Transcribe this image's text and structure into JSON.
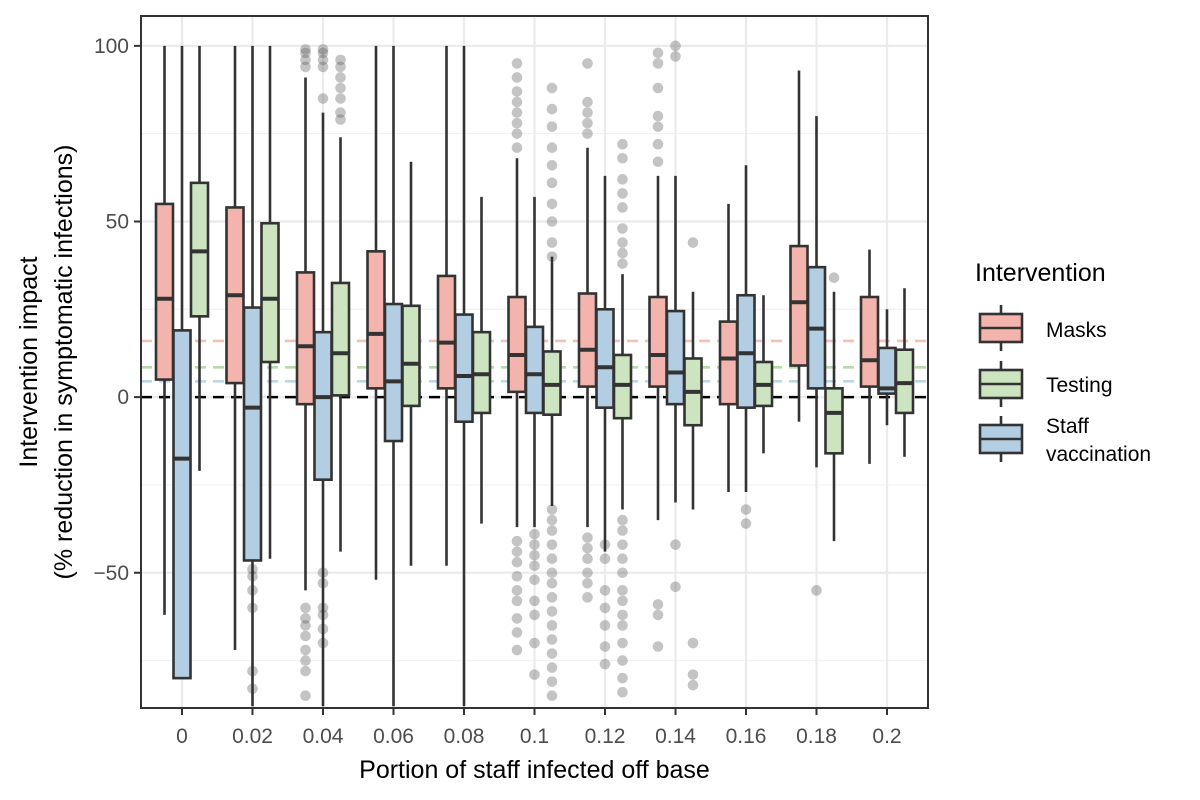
{
  "chart_data": {
    "type": "box",
    "xlabel": "Portion of staff infected off base",
    "ylabel_line1": "Intervention impact",
    "ylabel_line2": "(% reduction in symptomatic infections)",
    "categories": [
      "0",
      "0.02",
      "0.04",
      "0.06",
      "0.08",
      "0.1",
      "0.12",
      "0.14",
      "0.16",
      "0.18",
      "0.2"
    ],
    "y_ticks": [
      -50,
      0,
      50,
      100
    ],
    "y_tick_labels": [
      "−50",
      "0",
      "50",
      "100"
    ],
    "ylim": [
      -88.5,
      108.5
    ],
    "grid": true,
    "legend": {
      "title": "Intervention",
      "position": "right",
      "items": [
        {
          "label": "Masks",
          "color": "#F4B4AE"
        },
        {
          "label": "Testing",
          "color": "#CCE5C0"
        },
        {
          "label": "Staff",
          "label2": "vaccination",
          "color": "#B3CDE3"
        }
      ]
    },
    "reference_lines": [
      {
        "y": 16,
        "color": "#F4B4AE"
      },
      {
        "y": 8.5,
        "color": "#A9D39A"
      },
      {
        "y": 4.5,
        "color": "#B3CDE3"
      },
      {
        "y": 0,
        "color": "#000000"
      }
    ],
    "series": [
      {
        "name": "Masks",
        "color": "#F4B4AE",
        "boxes": [
          {
            "whisker_low": -62,
            "q1": 5,
            "median": 28,
            "q3": 55,
            "whisker_high": 100
          },
          {
            "whisker_low": -72,
            "q1": 4,
            "median": 29,
            "q3": 54,
            "whisker_high": 100
          },
          {
            "whisker_low": -55,
            "q1": -2,
            "median": 14.5,
            "q3": 35.5,
            "whisker_high": 91
          },
          {
            "whisker_low": -52,
            "q1": 2.5,
            "median": 18,
            "q3": 41.5,
            "whisker_high": 100
          },
          {
            "whisker_low": -48,
            "q1": 2.5,
            "median": 15.5,
            "q3": 34.5,
            "whisker_high": 100
          },
          {
            "whisker_low": -37,
            "q1": 1.5,
            "median": 12,
            "q3": 28.5,
            "whisker_high": 68
          },
          {
            "whisker_low": -37,
            "q1": 3,
            "median": 13.5,
            "q3": 29.5,
            "whisker_high": 71
          },
          {
            "whisker_low": -35,
            "q1": 3,
            "median": 12,
            "q3": 28.5,
            "whisker_high": 63
          },
          {
            "whisker_low": -27,
            "q1": -2,
            "median": 11,
            "q3": 21.5,
            "whisker_high": 55
          },
          {
            "whisker_low": -7,
            "q1": 9,
            "median": 27,
            "q3": 43,
            "whisker_high": 93
          },
          {
            "whisker_low": -19,
            "q1": 3,
            "median": 10.5,
            "q3": 28.5,
            "whisker_high": 42
          }
        ]
      },
      {
        "name": "Staff vaccination",
        "color": "#B3CDE3",
        "boxes": [
          {
            "whisker_low": -80,
            "q1": -80,
            "median": -17.5,
            "q3": 19,
            "whisker_high": 100
          },
          {
            "whisker_low": -88,
            "q1": -46.5,
            "median": -3,
            "q3": 25.5,
            "whisker_high": 100
          },
          {
            "whisker_low": -88,
            "q1": -23.5,
            "median": 0,
            "q3": 18.5,
            "whisker_high": 81
          },
          {
            "whisker_low": -88,
            "q1": -12.5,
            "median": 4.5,
            "q3": 26.5,
            "whisker_high": 100
          },
          {
            "whisker_low": -88,
            "q1": -7,
            "median": 6,
            "q3": 23.5,
            "whisker_high": 100
          },
          {
            "whisker_low": -37,
            "q1": -4.5,
            "median": 6.5,
            "q3": 20,
            "whisker_high": 57
          },
          {
            "whisker_low": -44,
            "q1": -3,
            "median": 8.5,
            "q3": 25,
            "whisker_high": 63
          },
          {
            "whisker_low": -30,
            "q1": -2,
            "median": 7,
            "q3": 24.5,
            "whisker_high": 63
          },
          {
            "whisker_low": -27,
            "q1": -3,
            "median": 12.5,
            "q3": 29,
            "whisker_high": 66
          },
          {
            "whisker_low": -20,
            "q1": 2.5,
            "median": 19.5,
            "q3": 37,
            "whisker_high": 80
          },
          {
            "whisker_low": -8,
            "q1": 1,
            "median": 2.5,
            "q3": 14,
            "whisker_high": 25
          }
        ]
      },
      {
        "name": "Testing",
        "color": "#CCE5C0",
        "boxes": [
          {
            "whisker_low": -21,
            "q1": 23,
            "median": 41.5,
            "q3": 61,
            "whisker_high": 100
          },
          {
            "whisker_low": -46,
            "q1": 10,
            "median": 28,
            "q3": 49.5,
            "whisker_high": 100
          },
          {
            "whisker_low": -44,
            "q1": 0.5,
            "median": 12.5,
            "q3": 32.5,
            "whisker_high": 74
          },
          {
            "whisker_low": -48,
            "q1": -2.5,
            "median": 9.5,
            "q3": 26,
            "whisker_high": 67
          },
          {
            "whisker_low": -36,
            "q1": -4.5,
            "median": 6.5,
            "q3": 18.5,
            "whisker_high": 57
          },
          {
            "whisker_low": -31,
            "q1": -5,
            "median": 3.5,
            "q3": 13,
            "whisker_high": 40
          },
          {
            "whisker_low": -32,
            "q1": -6,
            "median": 3.5,
            "q3": 12,
            "whisker_high": 35
          },
          {
            "whisker_low": -32,
            "q1": -8,
            "median": 1.5,
            "q3": 11,
            "whisker_high": 30
          },
          {
            "whisker_low": -16,
            "q1": -2.5,
            "median": 3.5,
            "q3": 10,
            "whisker_high": 29
          },
          {
            "whisker_low": -41,
            "q1": -16,
            "median": -4.5,
            "q3": 2.5,
            "whisker_high": 30
          },
          {
            "whisker_low": -17,
            "q1": -4.5,
            "median": 4,
            "q3": 13.5,
            "whisker_high": 31
          }
        ]
      }
    ],
    "outliers": {
      "Masks": [
        [],
        [],
        [
          99,
          98,
          96,
          94,
          -60,
          -63,
          -65,
          -68,
          -72,
          -75,
          -78,
          -85
        ],
        [],
        [],
        [
          95,
          91,
          87,
          84,
          81,
          78,
          75,
          71,
          -41,
          -44,
          -47,
          -51,
          -55,
          -58,
          -63,
          -67,
          -72
        ],
        [
          84,
          81,
          78,
          75,
          95,
          -40,
          -43,
          -46,
          -50,
          -53,
          -57
        ],
        [
          98,
          95,
          88,
          80,
          77,
          72,
          67,
          -59,
          -62,
          -71
        ],
        [],
        [],
        []
      ],
      "Staff vaccination": [
        [
          -37,
          -39,
          -42,
          -45,
          -53,
          -55
        ],
        [
          -49,
          -51,
          -55,
          -60,
          -78,
          -83
        ],
        [
          99,
          98,
          96,
          94,
          85,
          -50,
          -53,
          -60,
          -62,
          -66,
          -70
        ],
        [],
        [],
        [
          -39,
          -42,
          -45,
          -48,
          -52,
          -58,
          -62,
          -70,
          -79
        ],
        [
          -42,
          -46,
          -55,
          -60,
          -65,
          -71,
          -76
        ],
        [
          100,
          97,
          -42,
          -54
        ],
        [
          -32,
          -36
        ],
        [
          -55
        ],
        []
      ],
      "Testing": [
        [],
        [],
        [
          96,
          94,
          91,
          88,
          85,
          81,
          79
        ],
        [],
        [],
        [
          88,
          82,
          77,
          71,
          66,
          61,
          55,
          50,
          44,
          40,
          -32,
          -35,
          -38,
          -42,
          -46,
          -50,
          -53,
          -57,
          -61,
          -65,
          -69,
          -73,
          -77,
          -81,
          -85
        ],
        [
          72,
          68,
          62,
          58,
          54,
          48,
          44,
          41,
          38,
          -35,
          -38,
          -42,
          -46,
          -50,
          -55,
          -58,
          -62,
          -65,
          -70,
          -75,
          -80,
          -84
        ],
        [
          44,
          -70,
          -79,
          -82
        ],
        [],
        [
          34
        ],
        []
      ]
    }
  }
}
